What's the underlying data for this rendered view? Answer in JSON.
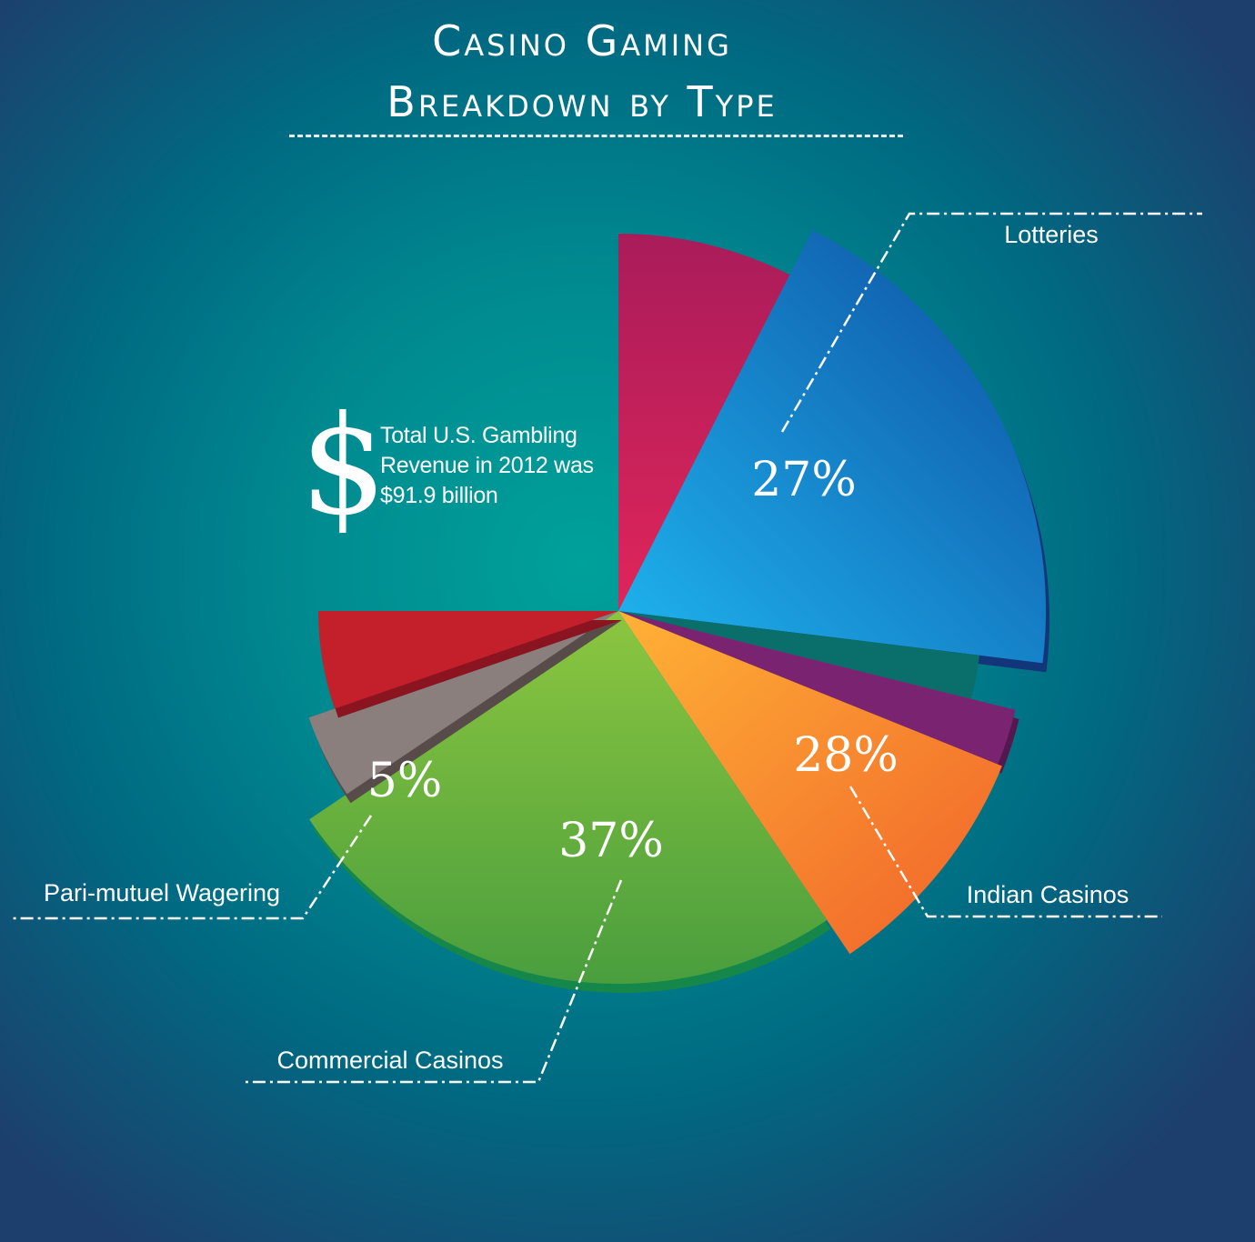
{
  "title": {
    "line1": "Casino Gaming",
    "line2": "Breakdown by Type"
  },
  "note": {
    "icon": "dollar-sign-icon",
    "symbol": "$",
    "lines": [
      "Total U.S. Gambling",
      "Revenue in 2012 was",
      "$91.9 billion"
    ]
  },
  "chart_data": {
    "type": "pie",
    "style": "exploded-3d",
    "slices": [
      {
        "category": "Lotteries",
        "value": 27,
        "label": "27%",
        "color": "#1a7fd0"
      },
      {
        "category": "Indian Casinos",
        "value": 28,
        "label": "28%",
        "color": "#f47b2a"
      },
      {
        "category": "Commercial Casinos",
        "value": 37,
        "label": "37%",
        "color": "#7cc142"
      },
      {
        "category": "Pari-mutuel Wagering",
        "value": 5,
        "label": "5%",
        "color": "#8a7f7d"
      }
    ],
    "unlabeled_slices_colors": [
      "#d2205f",
      "#0a6e6a",
      "#7a2370",
      "#c4202c"
    ],
    "legend": "leader-line callouts"
  }
}
